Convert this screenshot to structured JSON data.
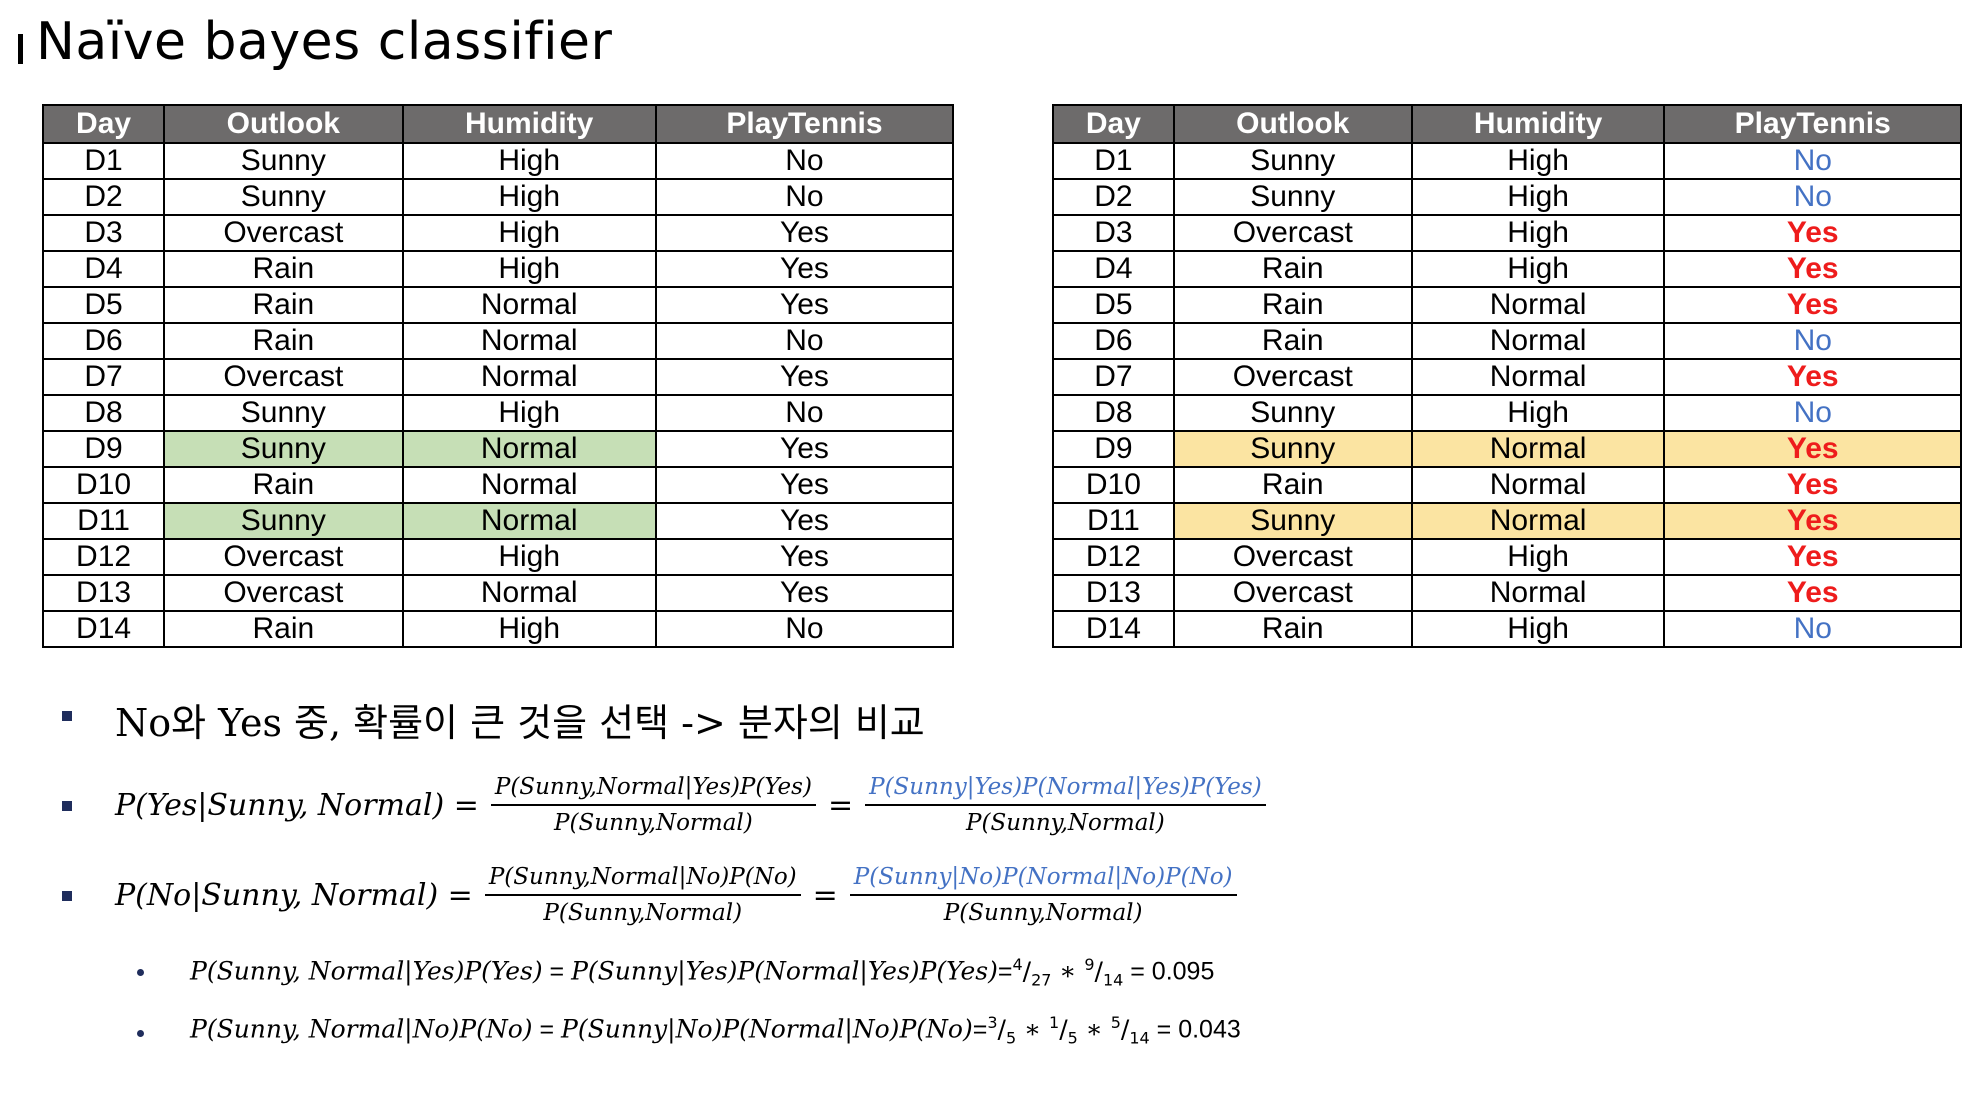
{
  "title": "Naïve bayes classifier",
  "headers": [
    "Day",
    "Outlook",
    "Humidity",
    "PlayTennis"
  ],
  "rows": [
    {
      "day": "D1",
      "outlook": "Sunny",
      "humidity": "High",
      "play": "No"
    },
    {
      "day": "D2",
      "outlook": "Sunny",
      "humidity": "High",
      "play": "No"
    },
    {
      "day": "D3",
      "outlook": "Overcast",
      "humidity": "High",
      "play": "Yes"
    },
    {
      "day": "D4",
      "outlook": "Rain",
      "humidity": "High",
      "play": "Yes"
    },
    {
      "day": "D5",
      "outlook": "Rain",
      "humidity": "Normal",
      "play": "Yes"
    },
    {
      "day": "D6",
      "outlook": "Rain",
      "humidity": "Normal",
      "play": "No"
    },
    {
      "day": "D7",
      "outlook": "Overcast",
      "humidity": "Normal",
      "play": "Yes"
    },
    {
      "day": "D8",
      "outlook": "Sunny",
      "humidity": "High",
      "play": "No"
    },
    {
      "day": "D9",
      "outlook": "Sunny",
      "humidity": "Normal",
      "play": "Yes"
    },
    {
      "day": "D10",
      "outlook": "Rain",
      "humidity": "Normal",
      "play": "Yes"
    },
    {
      "day": "D11",
      "outlook": "Sunny",
      "humidity": "Normal",
      "play": "Yes"
    },
    {
      "day": "D12",
      "outlook": "Overcast",
      "humidity": "High",
      "play": "Yes"
    },
    {
      "day": "D13",
      "outlook": "Overcast",
      "humidity": "Normal",
      "play": "Yes"
    },
    {
      "day": "D14",
      "outlook": "Rain",
      "humidity": "High",
      "play": "No"
    }
  ],
  "highlight_rows": [
    "D9",
    "D11"
  ],
  "colors": {
    "header_bg": "#6d6b6b",
    "left_highlight": "#c6dfb6",
    "right_highlight": "#fbe4a2",
    "no_color": "#4472c4",
    "yes_color": "#ee1c1c",
    "bullet_color": "#1f2d5c"
  },
  "bullet1": "No와 Yes 중, 확률이 큰 것을 선택 -> 분자의 비교",
  "eq1": {
    "lhs": "P(Yes|Sunny, Normal) =",
    "frac1_num": "P(Sunny,Normal|Yes)P(Yes)",
    "frac1_den": "P(Sunny,Normal)",
    "eq": "=",
    "frac2_num": "P(Sunny|Yes)P(Normal|Yes)P(Yes)",
    "frac2_den": "P(Sunny,Normal)"
  },
  "eq2": {
    "lhs": "P(No|Sunny, Normal) =",
    "frac1_num": "P(Sunny,Normal|No)P(No)",
    "frac1_den": "P(Sunny,Normal)",
    "eq": "=",
    "frac2_num": "P(Sunny|No)P(Normal|No)P(No)",
    "frac2_den": "P(Sunny,Normal)"
  },
  "sub1": {
    "lhs": "P(Sunny, Normal|Yes)P(Yes)",
    "mid": " = ",
    "expr": "P(Sunny|Yes)P(Normal|Yes)P(Yes)",
    "eqsign": "=",
    "a_num": "4",
    "a_den": "27",
    "star": " ∗ ",
    "b_num": "9",
    "b_den": "14",
    "result": " = 0.095"
  },
  "sub2": {
    "lhs": "P(Sunny, Normal|No)P(No)",
    "mid": " = ",
    "expr": "P(Sunny|No)P(Normal|No)P(No)",
    "eqsign": "=",
    "a_num": "3",
    "a_den": "5",
    "star": " ∗ ",
    "b_num": "1",
    "b_den": "5",
    "star2": " ∗ ",
    "c_num": "5",
    "c_den": "14",
    "result": " = 0.043"
  }
}
